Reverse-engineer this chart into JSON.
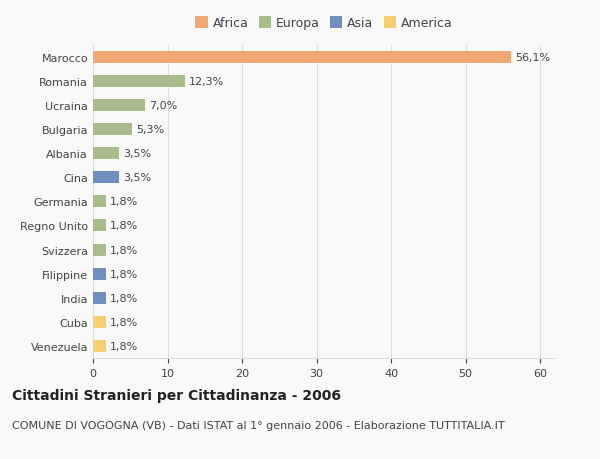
{
  "categories": [
    "Marocco",
    "Romania",
    "Ucraina",
    "Bulgaria",
    "Albania",
    "Cina",
    "Germania",
    "Regno Unito",
    "Svizzera",
    "Filippine",
    "India",
    "Cuba",
    "Venezuela"
  ],
  "values": [
    56.1,
    12.3,
    7.0,
    5.3,
    3.5,
    3.5,
    1.8,
    1.8,
    1.8,
    1.8,
    1.8,
    1.8,
    1.8
  ],
  "labels": [
    "56,1%",
    "12,3%",
    "7,0%",
    "5,3%",
    "3,5%",
    "3,5%",
    "1,8%",
    "1,8%",
    "1,8%",
    "1,8%",
    "1,8%",
    "1,8%",
    "1,8%"
  ],
  "colors": [
    "#f0a875",
    "#a8bc8c",
    "#a8bc8c",
    "#a8bc8c",
    "#a8bc8c",
    "#6f8fbf",
    "#a8bc8c",
    "#a8bc8c",
    "#a8bc8c",
    "#6f8fbf",
    "#6f8fbf",
    "#f5d070",
    "#f5d070"
  ],
  "continent_colors": {
    "Africa": "#f0a875",
    "Europa": "#a8bc8c",
    "Asia": "#6f8fbf",
    "America": "#f5d070"
  },
  "xlim": [
    0,
    62
  ],
  "xticks": [
    0,
    10,
    20,
    30,
    40,
    50,
    60
  ],
  "title": "Cittadini Stranieri per Cittadinanza - 2006",
  "subtitle": "COMUNE DI VOGOGNA (VB) - Dati ISTAT al 1° gennaio 2006 - Elaborazione TUTTITALIA.IT",
  "background_color": "#f9f9f9",
  "bar_height": 0.5,
  "grid_color": "#dddddd",
  "text_color": "#444444",
  "title_fontsize": 10,
  "subtitle_fontsize": 8,
  "label_fontsize": 8,
  "tick_fontsize": 8
}
